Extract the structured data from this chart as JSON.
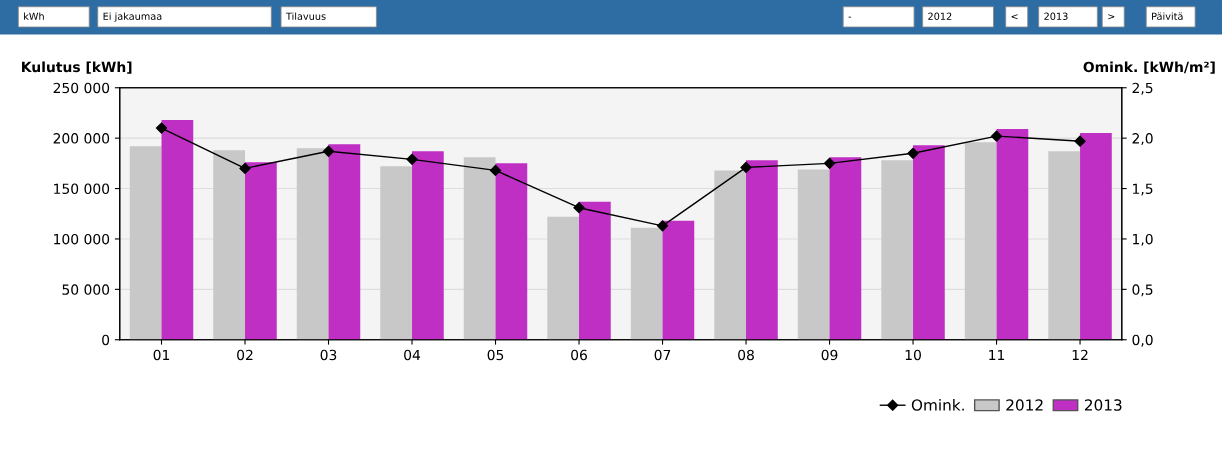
{
  "chart_data": {
    "type": "bar",
    "annotations": [
      "kWh",
      "Ei jakaumaa",
      "Tilavuus",
      "-",
      "2012",
      "<",
      "2013",
      ">",
      "Päivitä"
    ],
    "ylabel": "Kulutus [kWh]",
    "y2label": "Omink. [kWh/m²]",
    "categories": [
      "01",
      "02",
      "03",
      "04",
      "05",
      "06",
      "07",
      "08",
      "09",
      "10",
      "11",
      "12"
    ],
    "series": [
      {
        "name": "Omink.",
        "type": "line",
        "axis": "y2",
        "color": "#000000",
        "marker": "diamond",
        "values": [
          2.1,
          1.7,
          1.87,
          1.79,
          1.68,
          1.31,
          1.13,
          1.71,
          1.75,
          1.85,
          2.02,
          1.97
        ]
      },
      {
        "name": "2012",
        "color": "#c8c8c8",
        "values": [
          192000,
          188000,
          190000,
          172000,
          181000,
          122000,
          111000,
          168000,
          169000,
          178000,
          196000,
          187000
        ]
      },
      {
        "name": "2013",
        "color": "#bf2fc4",
        "values": [
          218000,
          176000,
          194000,
          187000,
          175000,
          137000,
          118000,
          178000,
          181000,
          193000,
          209000,
          205000
        ]
      }
    ],
    "ylim": [
      0,
      250000
    ],
    "yticks": [
      {
        "value": 0,
        "label": "0"
      },
      {
        "value": 50000,
        "label": "50 000"
      },
      {
        "value": 100000,
        "label": "100 000"
      },
      {
        "value": 150000,
        "label": "150 000"
      },
      {
        "value": 200000,
        "label": "200 000"
      },
      {
        "value": 250000,
        "label": "250 000"
      }
    ],
    "y2lim": [
      0,
      2.5
    ],
    "y2ticks": [
      {
        "value": 0,
        "label": "0,0"
      },
      {
        "value": 0.5,
        "label": "0,5"
      },
      {
        "value": 1.0,
        "label": "1,0"
      },
      {
        "value": 1.5,
        "label": "1,5"
      },
      {
        "value": 2.0,
        "label": "2,0"
      },
      {
        "value": 2.5,
        "label": "2,5"
      }
    ],
    "grid": "y",
    "legend": "bottom right"
  }
}
